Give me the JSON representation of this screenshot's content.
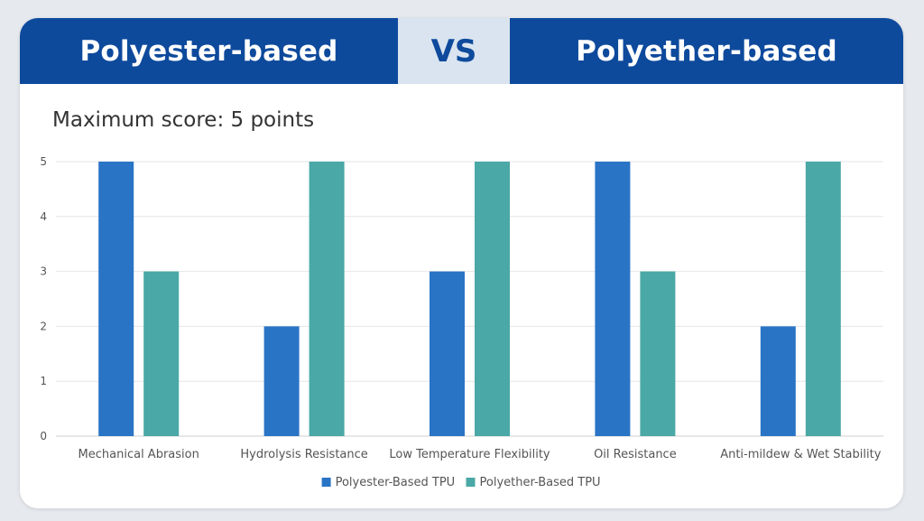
{
  "header": {
    "left_title": "Polyester-based",
    "vs_label": "VS",
    "right_title": "Polyether-based"
  },
  "subtitle": "Maximum score: 5 points",
  "colors": {
    "header_bg": "#0e4a9c",
    "vs_bg": "#d9e4f0",
    "series_1": "#2a74c6",
    "series_2": "#4aa8a6"
  },
  "chart_data": {
    "type": "bar",
    "categories": [
      "Mechanical Abrasion",
      "Hydrolysis Resistance",
      "Low Temperature Flexibility",
      "Oil Resistance",
      "Anti-mildew & Wet Stability"
    ],
    "series": [
      {
        "name": "Polyester-Based TPU",
        "values": [
          5,
          2,
          3,
          5,
          2
        ]
      },
      {
        "name": "Polyether-Based TPU",
        "values": [
          3,
          5,
          5,
          3,
          5
        ]
      }
    ],
    "ylim": [
      0,
      5
    ],
    "yticks": [
      0,
      1,
      2,
      3,
      4,
      5
    ],
    "grid": true,
    "legend": "bottom"
  }
}
